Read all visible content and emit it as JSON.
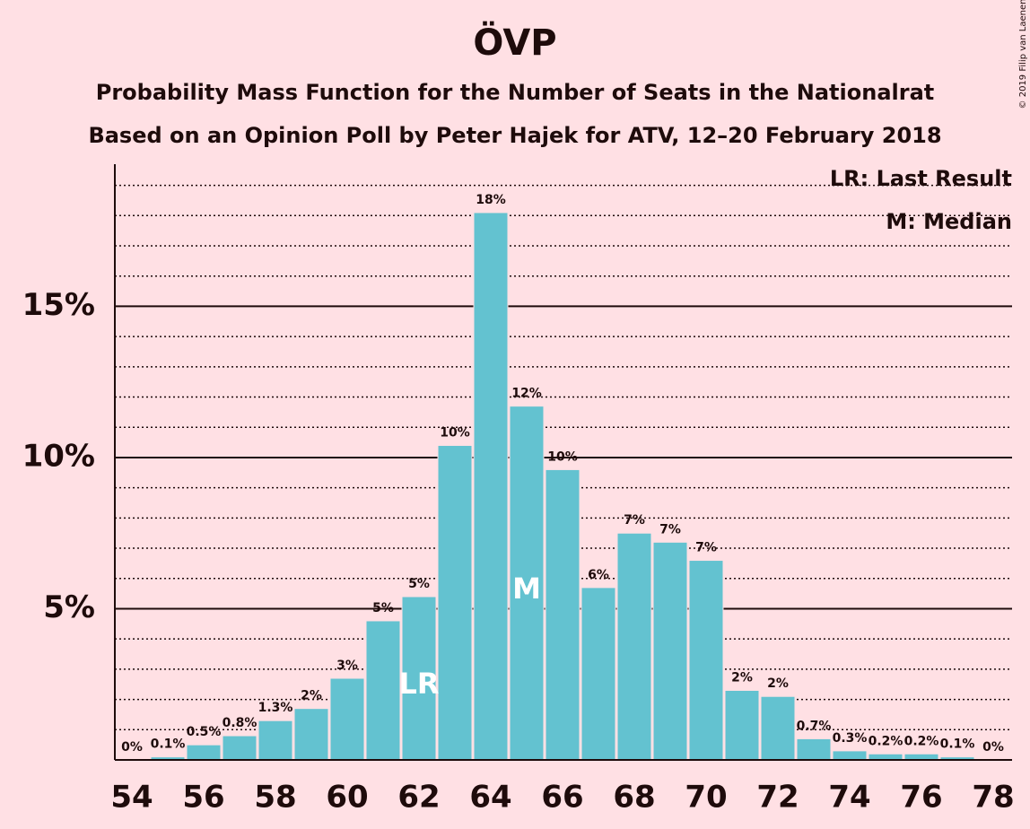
{
  "chart_data": {
    "type": "bar",
    "title": "ÖVP",
    "subtitle": "Probability Mass Function for the Number of Seats in the Nationalrat",
    "subtitle2": "Based on an Opinion Poll by Peter Hajek for ATV, 12–20 February 2018",
    "copyright": "© 2019 Filip van Laenen",
    "categories": [
      "54",
      null,
      "56",
      null,
      "58",
      null,
      "60",
      null,
      "62",
      null,
      "64",
      null,
      "66",
      null,
      "68",
      null,
      "70",
      null,
      "72",
      null,
      "74",
      null,
      "76",
      null,
      "78"
    ],
    "values": [
      0,
      0.1,
      0.5,
      0.8,
      1.3,
      1.7,
      2.7,
      4.6,
      5.4,
      10.4,
      18.1,
      11.7,
      9.6,
      5.7,
      7.5,
      7.2,
      6.6,
      2.3,
      2.1,
      0.7,
      0.3,
      0.2,
      0.2,
      0.1,
      0
    ],
    "value_labels": [
      "0%",
      "0.1%",
      "0.5%",
      "0.8%",
      "1.3%",
      "2%",
      "3%",
      "5%",
      "5%",
      "10%",
      "18%",
      "12%",
      "10%",
      "6%",
      "7%",
      "7%",
      "7%",
      "2%",
      "2%",
      "0.7%",
      "0.3%",
      "0.2%",
      "0.2%",
      "0.1%",
      "0%"
    ],
    "color": "#63c2d0",
    "ylim": [
      0,
      19.7
    ],
    "yticks": [
      {
        "value": 5,
        "label": "5%"
      },
      {
        "value": 10,
        "label": "10%"
      },
      {
        "value": 15,
        "label": "15%"
      }
    ],
    "minor_yticks": [
      1,
      2,
      3,
      4,
      6,
      7,
      8,
      9,
      11,
      12,
      13,
      14,
      16,
      17,
      18,
      19
    ],
    "grid": true,
    "annotations": [
      {
        "index": 8,
        "text": "LR"
      },
      {
        "index": 11,
        "text": "M"
      }
    ],
    "legend": [
      "LR: Last Result",
      "M: Median"
    ]
  }
}
